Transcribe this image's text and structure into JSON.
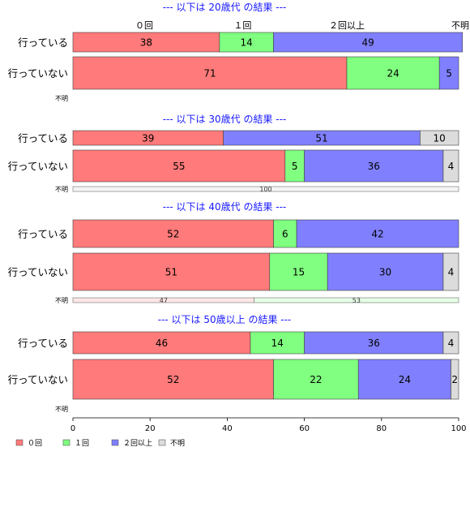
{
  "chart_data": {
    "type": "bar",
    "orientation": "horizontal",
    "stacked": true,
    "xlim": [
      0,
      100
    ],
    "xticks": [
      "0",
      "20",
      "40",
      "60",
      "80",
      "100"
    ],
    "legend": {
      "placement": "bottom-left",
      "entries": [
        {
          "label": "０回",
          "color": "#ff7a7a"
        },
        {
          "label": "１回",
          "color": "#80ff80"
        },
        {
          "label": "２回以上",
          "color": "#8080ff"
        },
        {
          "label": "不明",
          "color": "#dcdcdc"
        }
      ]
    },
    "top_category_labels": [
      "０回",
      "１回",
      "２回以上",
      "不明"
    ],
    "panels": [
      {
        "title": "--- 以下は 20歳代 の結果 ---",
        "unknown_label": "不明",
        "unknown_values": [],
        "rows": [
          {
            "label": "行っている",
            "values": [
              38,
              14,
              49
            ],
            "show_zero_unknown": true
          },
          {
            "label": "行っていない",
            "values": [
              71,
              24,
              5
            ],
            "show_zero_unknown": true
          }
        ]
      },
      {
        "title": "--- 以下は 30歳代 の結果 ---",
        "unknown_label": "不明",
        "unknown_values": [
          0,
          0,
          0,
          100
        ],
        "rows": [
          {
            "label": "行っている",
            "values": [
              39,
              0,
              51,
              10
            ]
          },
          {
            "label": "行っていない",
            "values": [
              55,
              5,
              36,
              4
            ]
          }
        ]
      },
      {
        "title": "--- 以下は 40歳代 の結果 ---",
        "unknown_label": "不明",
        "unknown_values": [
          47,
          53
        ],
        "rows": [
          {
            "label": "行っている",
            "values": [
              52,
              6,
              42
            ]
          },
          {
            "label": "行っていない",
            "values": [
              51,
              15,
              30,
              4
            ]
          }
        ]
      },
      {
        "title": "--- 以下は 50歳以上 の結果 ---",
        "unknown_label": "不明",
        "unknown_values": [],
        "rows": [
          {
            "label": "行っている",
            "values": [
              46,
              14,
              36,
              4
            ]
          },
          {
            "label": "行っていない",
            "values": [
              52,
              22,
              24,
              2
            ]
          }
        ]
      }
    ]
  }
}
